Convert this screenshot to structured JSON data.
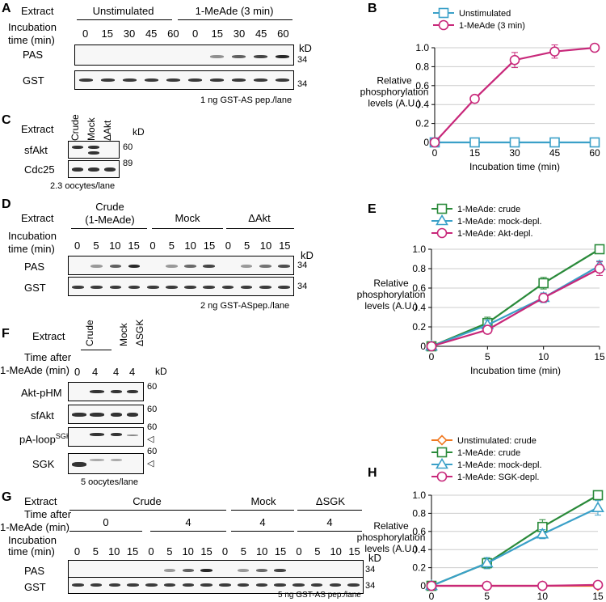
{
  "labels": {
    "A": "A",
    "B": "B",
    "C": "C",
    "D": "D",
    "E": "E",
    "F": "F",
    "G": "G",
    "H": "H"
  },
  "common": {
    "extract": "Extract",
    "incubation": "Incubation",
    "time_min": "time (min)",
    "kd": "kD",
    "pas": "PAS",
    "gst": "GST",
    "time_after": "Time after",
    "after_mead": "1-MeAde (min)"
  },
  "panelA": {
    "groups": [
      "Unstimulated",
      "1-MeAde (3 min)"
    ],
    "times": [
      "0",
      "15",
      "30",
      "45",
      "60",
      "0",
      "15",
      "30",
      "45",
      "60"
    ],
    "kd34": "34",
    "footer": "1 ng GST-AS pep./lane",
    "pas_levels": [
      0,
      0,
      0,
      0,
      0,
      0,
      0.35,
      0.6,
      0.75,
      0.9
    ]
  },
  "panelC": {
    "lanes": [
      "Crude",
      "Mock",
      "ΔAkt"
    ],
    "rows": [
      "sfAkt",
      "Cdc25"
    ],
    "kd": [
      "60",
      "89"
    ],
    "footer": "2.3 oocytes/lane"
  },
  "panelD": {
    "groups": [
      "Crude",
      "(1-MeAde)",
      "Mock",
      "ΔAkt"
    ],
    "times": [
      "0",
      "5",
      "10",
      "15",
      "0",
      "5",
      "10",
      "15",
      "0",
      "5",
      "10",
      "15"
    ],
    "kd34": "34",
    "footer": "2 ng GST-ASpep./lane",
    "pas_levels": [
      0,
      0.3,
      0.6,
      0.9,
      0,
      0.3,
      0.55,
      0.75,
      0,
      0.3,
      0.5,
      0.7
    ]
  },
  "panelF": {
    "lanes": [
      "Crude",
      "Mock",
      "ΔSGK"
    ],
    "times": [
      "0",
      "4",
      "4",
      "4"
    ],
    "rows": [
      "Akt-pHM",
      "sfAkt",
      "pA-loop",
      "SGK"
    ],
    "sgk_sup": "SGK",
    "kd60": "60",
    "footer": "5 oocytes/lane"
  },
  "panelG": {
    "groups": [
      "Crude",
      "Mock",
      "ΔSGK"
    ],
    "after": [
      "0",
      "4",
      "4",
      "4"
    ],
    "times": [
      "0",
      "5",
      "10",
      "15",
      "0",
      "5",
      "10",
      "15",
      "0",
      "5",
      "10",
      "15",
      "0",
      "5",
      "10",
      "15"
    ],
    "kd34": "34",
    "footer": "5 ng GST-AS pep./lane",
    "pas_levels": [
      0,
      0,
      0,
      0,
      0,
      0.3,
      0.6,
      0.9,
      0,
      0.3,
      0.55,
      0.75,
      0,
      0,
      0,
      0
    ]
  },
  "chart_data": [
    {
      "type": "line",
      "panel": "B",
      "x": [
        0,
        15,
        30,
        45,
        60
      ],
      "series": [
        {
          "name": "Unstimulated",
          "color": "#3aa0c8",
          "marker": "square",
          "values": [
            0,
            0,
            0,
            0,
            0
          ]
        },
        {
          "name": "1-MeAde (3 min)",
          "color": "#c8287a",
          "marker": "circle",
          "values": [
            0,
            0.46,
            0.87,
            0.96,
            1.0
          ],
          "err": [
            0.02,
            0.03,
            0.08,
            0.07,
            0.02
          ]
        }
      ],
      "xlabel": "Incubation time (min)",
      "ylabel": [
        "Relative",
        "phosphorylation",
        "levels (A.U.)"
      ],
      "xlim": [
        0,
        60
      ],
      "ylim": [
        0,
        1.0
      ],
      "xticks": [
        "0",
        "15",
        "30",
        "45",
        "60"
      ],
      "yticks": [
        "0",
        "0.2",
        "0.4",
        "0.6",
        "0.8",
        "1.0"
      ]
    },
    {
      "type": "line",
      "panel": "E",
      "x": [
        0,
        5,
        10,
        15
      ],
      "series": [
        {
          "name": "1-MeAde: crude",
          "color": "#2a8a3a",
          "marker": "square",
          "values": [
            0,
            0.24,
            0.65,
            1.0
          ],
          "err": [
            0.02,
            0.06,
            0.06,
            0.02
          ]
        },
        {
          "name": "1-MeAde: mock-depl.",
          "color": "#3aa0c8",
          "marker": "triangle",
          "values": [
            0,
            0.22,
            0.5,
            0.83
          ],
          "err": [
            0.02,
            0.05,
            0.05,
            0.05
          ]
        },
        {
          "name": "1-MeAde: Akt-depl.",
          "color": "#c8287a",
          "marker": "circle",
          "values": [
            0,
            0.17,
            0.5,
            0.8
          ],
          "err": [
            0.02,
            0.04,
            0.04,
            0.07
          ]
        }
      ],
      "xlabel": "Incubation time (min)",
      "ylabel": [
        "Relative",
        "phosphorylation",
        "levels (A.U.)"
      ],
      "xlim": [
        0,
        15
      ],
      "ylim": [
        0,
        1.0
      ],
      "xticks": [
        "0",
        "5",
        "10",
        "15"
      ],
      "yticks": [
        "0",
        "0.2",
        "0.4",
        "0.6",
        "0.8",
        "1.0"
      ]
    },
    {
      "type": "line",
      "panel": "H",
      "x": [
        0,
        5,
        10,
        15
      ],
      "series": [
        {
          "name": "Unstimulated: crude",
          "color": "#f07820",
          "marker": "diamond",
          "values": [
            0,
            0,
            0,
            0
          ]
        },
        {
          "name": "1-MeAde: crude",
          "color": "#2a8a3a",
          "marker": "square",
          "values": [
            0,
            0.25,
            0.65,
            1.0
          ],
          "err": [
            0.02,
            0.06,
            0.08,
            0.02
          ]
        },
        {
          "name": "1-MeAde: mock-depl.",
          "color": "#3aa0c8",
          "marker": "triangle",
          "values": [
            0,
            0.25,
            0.57,
            0.86
          ],
          "err": [
            0.02,
            0.06,
            0.05,
            0.08
          ]
        },
        {
          "name": "1-MeAde: SGK-depl.",
          "color": "#c8287a",
          "marker": "circle",
          "values": [
            0,
            0,
            0,
            0.01
          ]
        }
      ],
      "xlabel": "Incubation time (min)",
      "ylabel": [
        "Relative",
        "phosphorylation",
        "levels (A.U.)"
      ],
      "xlim": [
        0,
        15
      ],
      "ylim": [
        0,
        1.0
      ],
      "xticks": [
        "0",
        "5",
        "10",
        "15"
      ],
      "yticks": [
        "0",
        "0.2",
        "0.4",
        "0.6",
        "0.8",
        "1.0"
      ]
    }
  ]
}
